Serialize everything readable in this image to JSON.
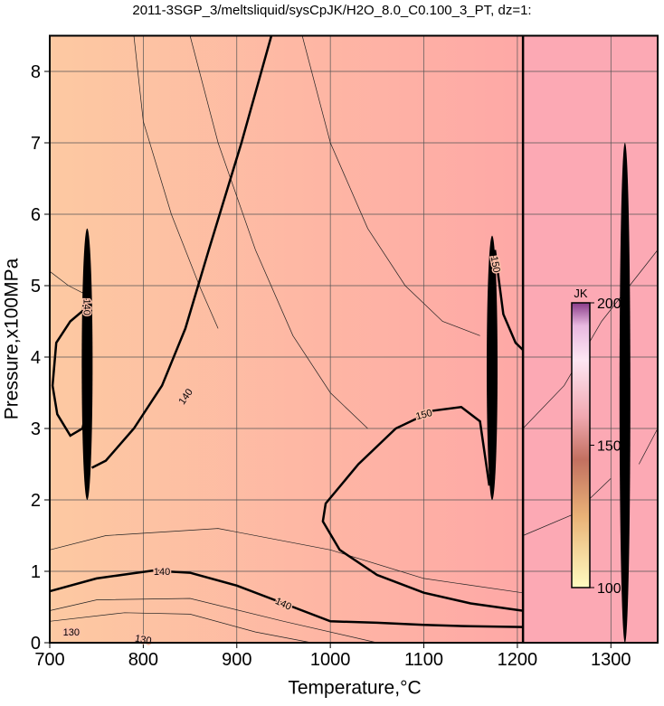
{
  "chart_data": {
    "type": "contour",
    "title": "2011-3SGP_3/meltsliquid/sysCpJK/H2O_8.0_C0.100_3_PT, dz=1:",
    "x_label": "Temperature,°C",
    "y_label": "Pressure,x100MPa",
    "xlim": [
      700,
      1350
    ],
    "ylim": [
      0,
      8.5
    ],
    "xticks": [
      700,
      800,
      900,
      1000,
      1100,
      1200,
      1300
    ],
    "yticks": [
      0,
      1,
      2,
      3,
      4,
      5,
      6,
      7,
      8
    ],
    "grid": true,
    "divider_x": 1206,
    "thick_contours": [
      {
        "x": [
          937,
          905,
          870,
          845,
          820,
          790,
          760,
          745
        ],
        "y": [
          8.5,
          7,
          5.5,
          4.4,
          3.6,
          3.0,
          2.55,
          2.45
        ]
      },
      {
        "x": [
          740,
          722,
          707,
          703,
          708,
          722,
          735,
          740
        ],
        "y": [
          4.7,
          4.5,
          4.2,
          3.6,
          3.2,
          2.9,
          3.0,
          3.3
        ]
      },
      {
        "x": [
          700,
          750,
          810,
          850,
          900,
          950,
          1000,
          1050,
          1100,
          1150,
          1205
        ],
        "y": [
          0.72,
          0.9,
          1.01,
          0.98,
          0.8,
          0.55,
          0.3,
          0.28,
          0.25,
          0.23,
          0.22
        ]
      },
      {
        "x": [
          1170,
          1160,
          1140,
          1110,
          1070,
          1030,
          995,
          992,
          1010,
          1050,
          1100,
          1150,
          1205
        ],
        "y": [
          2.2,
          3.1,
          3.3,
          3.25,
          3.0,
          2.5,
          1.95,
          1.7,
          1.3,
          0.95,
          0.7,
          0.55,
          0.45
        ]
      },
      {
        "x": [
          1176,
          1185,
          1198,
          1206
        ],
        "y": [
          5.5,
          4.6,
          4.2,
          4.1
        ]
      }
    ],
    "thin_contours": [
      {
        "x": [
          790,
          800,
          830,
          860,
          880
        ],
        "y": [
          8.5,
          7.3,
          6.0,
          5.0,
          4.4
        ]
      },
      {
        "x": [
          850,
          880,
          920,
          960,
          1000,
          1040
        ],
        "y": [
          8.5,
          7.0,
          5.5,
          4.3,
          3.5,
          3.0
        ]
      },
      {
        "x": [
          970,
          1000,
          1040,
          1080,
          1120,
          1160
        ],
        "y": [
          8.5,
          7.0,
          5.8,
          5.0,
          4.5,
          4.3
        ]
      },
      {
        "x": [
          700,
          750,
          850,
          950,
          1050
        ],
        "y": [
          0.45,
          0.6,
          0.62,
          0.3,
          0
        ]
      },
      {
        "x": [
          700,
          780,
          850,
          920,
          980
        ],
        "y": [
          0.3,
          0.42,
          0.4,
          0.15,
          0
        ]
      },
      {
        "x": [
          700,
          760,
          880,
          1000,
          1100,
          1205
        ],
        "y": [
          1.3,
          1.5,
          1.6,
          1.3,
          0.9,
          0.7
        ]
      },
      {
        "x": [
          700,
          720,
          735,
          740
        ],
        "y": [
          5.2,
          5.0,
          4.9,
          5.0
        ]
      },
      {
        "x": [
          1206,
          1250,
          1290,
          1350
        ],
        "y": [
          3.0,
          3.6,
          4.5,
          5.5
        ]
      },
      {
        "x": [
          1206,
          1260,
          1300
        ],
        "y": [
          1.5,
          1.8,
          2.3
        ]
      },
      {
        "x": [
          1330,
          1350
        ],
        "y": [
          2.5,
          3.0
        ]
      }
    ],
    "spikes": [
      {
        "x": 740,
        "y0": 2.0,
        "y1": 5.8
      },
      {
        "x": 1173,
        "y0": 2.0,
        "y1": 5.7
      },
      {
        "x": 1315,
        "y0": 0.0,
        "y1": 7.0
      }
    ],
    "contour_labels": [
      {
        "text": 140,
        "x": 845,
        "y": 3.45,
        "angle": -55
      },
      {
        "text": 140,
        "x": 820,
        "y": 1.0,
        "angle": 0
      },
      {
        "text": 140,
        "x": 950,
        "y": 0.55,
        "angle": 25
      },
      {
        "text": 130,
        "x": 723,
        "y": 0.15,
        "angle": 0
      },
      {
        "text": 130,
        "x": 800,
        "y": 0.05,
        "angle": 10
      },
      {
        "text": 150,
        "x": 1100,
        "y": 3.2,
        "angle": -15
      },
      {
        "text": 150,
        "x": 1177,
        "y": 5.3,
        "angle": 80
      },
      {
        "text": 140,
        "x": 740,
        "y": 4.7,
        "angle": 90
      }
    ],
    "colorbar": {
      "label": "JK",
      "clim": [
        100,
        200
      ],
      "ticks": [
        100,
        150,
        200
      ]
    }
  }
}
